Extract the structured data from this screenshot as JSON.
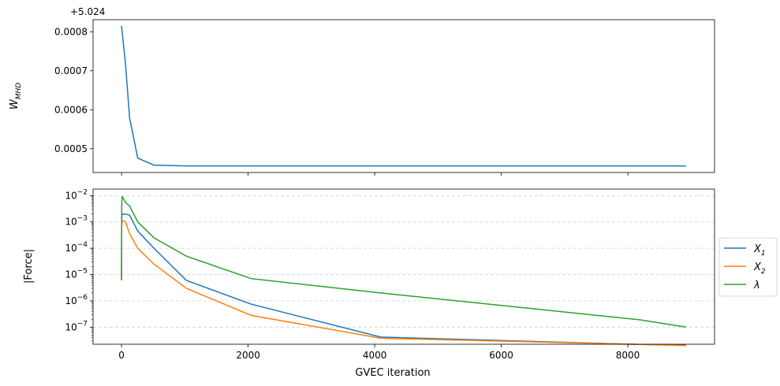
{
  "chart_data": [
    {
      "type": "line",
      "ylabel": "W_MHD",
      "ylabel_main": "W",
      "ylabel_sub": "MHD",
      "offset_text": "+5.024",
      "ylim": [
        0.000439,
        0.000831
      ],
      "yticks": [
        0.0005,
        0.0006,
        0.0007,
        0.0008
      ],
      "ytick_labels": [
        "0.0005",
        "0.0006",
        "0.0007",
        "0.0008"
      ],
      "xlim": [
        -450,
        9370
      ],
      "xticks": [
        0,
        2000,
        4000,
        6000,
        8000
      ],
      "grid": false,
      "series": [
        {
          "color": "#1f77b4",
          "x": [
            0,
            64,
            128,
            256,
            512,
            1024,
            2048,
            4096,
            8192,
            8920
          ],
          "y": [
            0.000815,
            0.000715,
            0.000578,
            0.000476,
            0.000458,
            0.000456,
            0.000456,
            0.000456,
            0.000456,
            0.000456
          ]
        }
      ]
    },
    {
      "type": "line",
      "scale": "log",
      "ylabel": "|Force|",
      "xlabel": "GVEC iteration",
      "ylim_log10": [
        -7.65,
        -1.75
      ],
      "yticks_log10": [
        -7,
        -6,
        -5,
        -4,
        -3,
        -2
      ],
      "ytick_labels": [
        {
          "base": "10",
          "exp": "−7"
        },
        {
          "base": "10",
          "exp": "−6"
        },
        {
          "base": "10",
          "exp": "−5"
        },
        {
          "base": "10",
          "exp": "−4"
        },
        {
          "base": "10",
          "exp": "−3"
        },
        {
          "base": "10",
          "exp": "−2"
        }
      ],
      "xlim": [
        -450,
        9370
      ],
      "xticks": [
        0,
        2000,
        4000,
        6000,
        8000
      ],
      "xtick_labels": [
        "0",
        "2000",
        "4000",
        "6000",
        "8000"
      ],
      "grid": true,
      "legend_placement": "outside-right",
      "series": [
        {
          "name": "X_1",
          "name_main": "X",
          "name_sub": "1",
          "color": "#1f77b4",
          "x": [
            0,
            1,
            2,
            4,
            8,
            16,
            32,
            64,
            128,
            256,
            512,
            1024,
            2048,
            4096,
            8192,
            8920
          ],
          "y": [
            6e-06,
            0.00015,
            0.0009,
            0.0015,
            0.0019,
            0.002,
            0.002,
            0.002,
            0.0018,
            0.00045,
            0.0001,
            6e-06,
            7.5e-07,
            4.2e-08,
            2.2e-08,
            2.1e-08
          ]
        },
        {
          "name": "X_2",
          "name_main": "X",
          "name_sub": "2",
          "color": "#ff7f0e",
          "x": [
            0,
            1,
            2,
            4,
            8,
            16,
            32,
            64,
            128,
            256,
            512,
            1024,
            2048,
            4096,
            8192,
            8920
          ],
          "y": [
            6e-06,
            0.0001,
            0.0005,
            0.0009,
            0.0011,
            0.0011,
            0.0011,
            0.001,
            0.00035,
            0.0001,
            2.5e-05,
            3e-06,
            2.8e-07,
            3.8e-08,
            2.2e-08,
            2e-08
          ]
        },
        {
          "name": "λ",
          "color": "#2ca02c",
          "x": [
            0,
            1,
            2,
            4,
            8,
            16,
            32,
            64,
            128,
            256,
            512,
            1024,
            2048,
            4096,
            8192,
            8920
          ],
          "y": [
            6e-06,
            0.0002,
            0.002,
            0.005,
            0.0085,
            0.009,
            0.0075,
            0.0055,
            0.004,
            0.001,
            0.00025,
            5e-05,
            7e-06,
            2e-06,
            1.9e-07,
            1e-07
          ]
        }
      ]
    }
  ]
}
